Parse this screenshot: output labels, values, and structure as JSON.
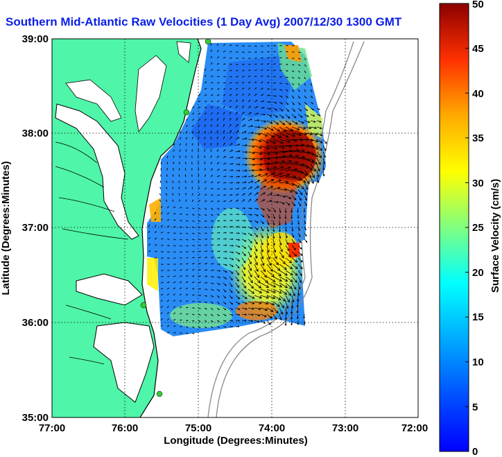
{
  "title": "Southern Mid-Atlantic Raw Velocities (1 Day Avg) 2007/12/30 1300 GMT",
  "map": {
    "xlabel": "Longitude (Degrees:Minutes)",
    "ylabel": "Latitude (Degrees:Minutes)",
    "x_ticks": [
      "77:00",
      "76:00",
      "75:00",
      "74:00",
      "73:00",
      "72:00"
    ],
    "y_ticks": [
      "39:00",
      "38:00",
      "37:00",
      "36:00",
      "35:00"
    ],
    "lon_range": [
      -77,
      -72
    ],
    "lat_range": [
      35,
      39
    ],
    "grid": "dotted"
  },
  "colorbar": {
    "label": "Surface Velocity (cm/s)",
    "ticks": [
      "50",
      "45",
      "40",
      "35",
      "30",
      "25",
      "20",
      "15",
      "10",
      "5",
      "0"
    ],
    "range": [
      0,
      50
    ],
    "colormap": "jet"
  },
  "colors": {
    "land": "#4ff5a8",
    "title": "#0a1ee6",
    "station": "#33cc33"
  }
}
